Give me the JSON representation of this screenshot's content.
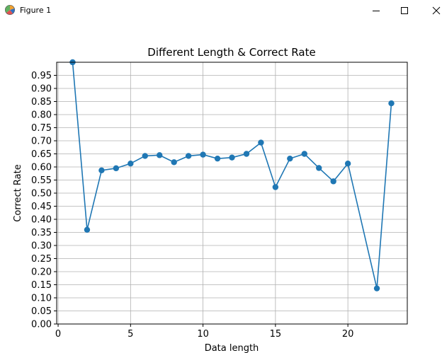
{
  "window": {
    "title": "Figure 1",
    "icon": "matplotlib-figure-icon",
    "controls": [
      "minimize-icon",
      "maximize-icon",
      "close-icon"
    ]
  },
  "chart_data": {
    "type": "line",
    "title": "Different Length & Correct Rate",
    "xlabel": "Data length",
    "ylabel": "Correct Rate",
    "x": [
      1,
      2,
      3,
      4,
      5,
      6,
      7,
      8,
      9,
      10,
      11,
      12,
      13,
      14,
      15,
      16,
      17,
      18,
      19,
      20,
      22,
      23
    ],
    "series": [
      {
        "values": [
          1.0,
          0.36,
          0.587,
          0.595,
          0.613,
          0.642,
          0.645,
          0.618,
          0.642,
          0.647,
          0.632,
          0.636,
          0.65,
          0.693,
          0.523,
          0.632,
          0.65,
          0.596,
          0.545,
          0.613,
          0.136,
          0.843
        ],
        "color": "#1f77b4",
        "marker": "circle"
      }
    ],
    "xlim": [
      -0.1,
      24.1
    ],
    "ylim": [
      0.0,
      1.0
    ],
    "xticks": [
      0,
      5,
      10,
      15,
      20
    ],
    "yticks": [
      0.0,
      0.05,
      0.1,
      0.15,
      0.2,
      0.25,
      0.3,
      0.35,
      0.4,
      0.45,
      0.5,
      0.55,
      0.6,
      0.65,
      0.7,
      0.75,
      0.8,
      0.85,
      0.9,
      0.95
    ],
    "ytick_labels": [
      "0.00",
      "0.05",
      "0.10",
      "0.15",
      "0.20",
      "0.25",
      "0.30",
      "0.35",
      "0.40",
      "0.45",
      "0.50",
      "0.55",
      "0.60",
      "0.65",
      "0.70",
      "0.75",
      "0.80",
      "0.85",
      "0.90",
      "0.95"
    ],
    "grid": true
  }
}
